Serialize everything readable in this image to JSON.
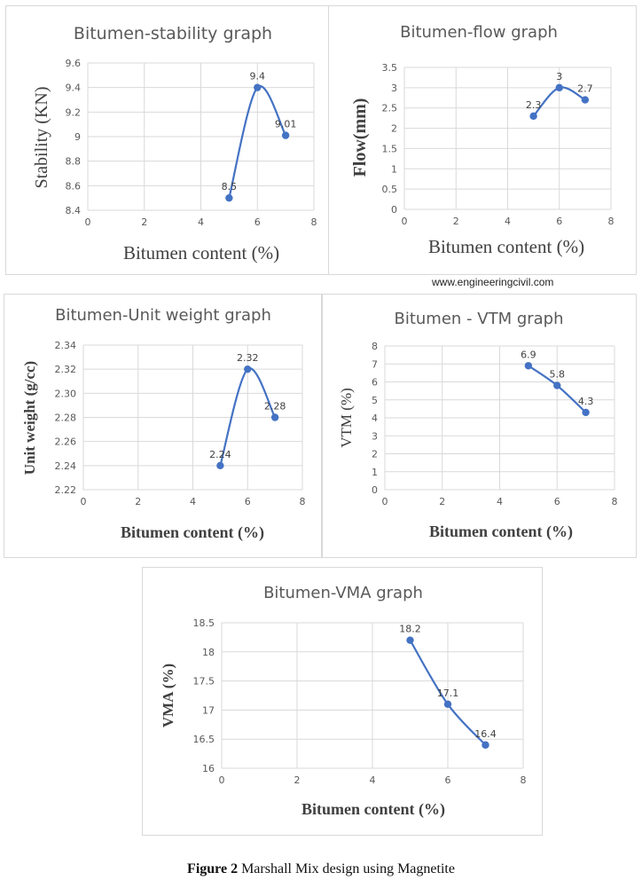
{
  "watermark": "www.engineeringcivil.com",
  "caption": {
    "label": "Figure 2",
    "text": "Marshall Mix design using Magnetite"
  },
  "chart_data": [
    {
      "id": "stability",
      "type": "line",
      "title": "Bitumen-stability graph",
      "xlabel": "Bitumen content (%)",
      "ylabel": "Stability (KN)",
      "xlim": [
        0,
        8
      ],
      "xticks": [
        0,
        2,
        4,
        6,
        8
      ],
      "ylim": [
        8.4,
        9.6
      ],
      "yticks": [
        8.4,
        8.6,
        8.8,
        9,
        9.2,
        9.4,
        9.6
      ],
      "x": [
        5,
        6,
        7
      ],
      "y": [
        8.5,
        9.4,
        9.01
      ],
      "labels": [
        "8.5",
        "9.4",
        "9.01"
      ],
      "grid": true,
      "smooth": true,
      "color": "#4472c4"
    },
    {
      "id": "flow",
      "type": "line",
      "title": "Bitumen-flow graph",
      "xlabel": "Bitumen content (%)",
      "ylabel": "Flow(mm)",
      "xlim": [
        0,
        8
      ],
      "xticks": [
        0,
        2,
        4,
        6,
        8
      ],
      "ylim": [
        0,
        3.5
      ],
      "yticks": [
        0,
        0.5,
        1,
        1.5,
        2,
        2.5,
        3,
        3.5
      ],
      "x": [
        5,
        6,
        7
      ],
      "y": [
        2.3,
        3,
        2.7
      ],
      "labels": [
        "2.3",
        "3",
        "2.7"
      ],
      "grid": true,
      "smooth": true,
      "color": "#4472c4"
    },
    {
      "id": "unitweight",
      "type": "line",
      "title": "Bitumen-Unit weight graph",
      "xlabel": "Bitumen content (%)",
      "ylabel": "Unit weight (g/cc)",
      "xlim": [
        0,
        8
      ],
      "xticks": [
        0,
        2,
        4,
        6,
        8
      ],
      "ylim": [
        2.22,
        2.34
      ],
      "yticks": [
        2.22,
        2.24,
        2.26,
        2.28,
        2.3,
        2.32,
        2.34
      ],
      "x": [
        5,
        6,
        7
      ],
      "y": [
        2.24,
        2.32,
        2.28
      ],
      "labels": [
        "2.24",
        "2.32",
        "2.28"
      ],
      "grid": true,
      "smooth": true,
      "color": "#4472c4"
    },
    {
      "id": "vtm",
      "type": "line",
      "title": "Bitumen - VTM graph",
      "xlabel": "Bitumen content (%)",
      "ylabel": "VTM (%)",
      "xlim": [
        0,
        8
      ],
      "xticks": [
        0,
        2,
        4,
        6,
        8
      ],
      "ylim": [
        0,
        8
      ],
      "yticks": [
        0,
        1,
        2,
        3,
        4,
        5,
        6,
        7,
        8
      ],
      "x": [
        5,
        6,
        7
      ],
      "y": [
        6.9,
        5.8,
        4.3
      ],
      "labels": [
        "6.9",
        "5.8",
        "4.3"
      ],
      "grid": true,
      "smooth": true,
      "color": "#4472c4"
    },
    {
      "id": "vma",
      "type": "line",
      "title": "Bitumen-VMA graph",
      "xlabel": "Bitumen content (%)",
      "ylabel": "VMA (%)",
      "xlim": [
        0,
        8
      ],
      "xticks": [
        0,
        2,
        4,
        6,
        8
      ],
      "ylim": [
        16,
        18.5
      ],
      "yticks": [
        16,
        16.5,
        17,
        17.5,
        18,
        18.5
      ],
      "x": [
        5,
        6,
        7
      ],
      "y": [
        18.2,
        17.1,
        16.4
      ],
      "labels": [
        "18.2",
        "17.1",
        "16.4"
      ],
      "grid": true,
      "smooth": true,
      "color": "#4472c4"
    }
  ]
}
